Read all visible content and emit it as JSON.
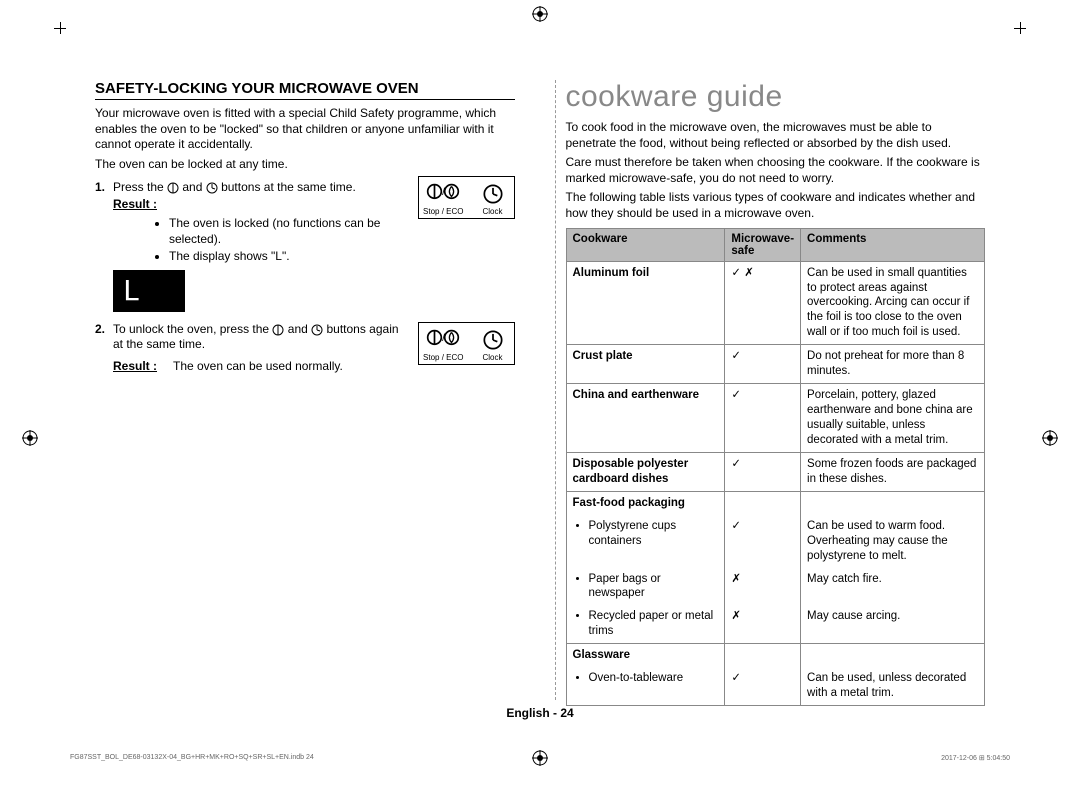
{
  "left": {
    "heading": "SAFETY-LOCKING YOUR MICROWAVE OVEN",
    "intro": "Your microwave oven is fitted with a special Child Safety programme, which enables the oven to be \"locked\" so that children or anyone unfamiliar with it cannot operate it accidentally.",
    "intro2": "The oven can be locked at any time.",
    "step1_num": "1.",
    "step1_text_a": "Press the ",
    "step1_text_b": " and ",
    "step1_text_c": " buttons at the same time.",
    "result_label": "Result :",
    "step1_result_b1": "The oven is locked (no functions can be selected).",
    "step1_result_b2": "The display shows \"L\".",
    "display_L": "L",
    "step2_num": "2.",
    "step2_text_a": "To unlock the oven, press the ",
    "step2_text_b": " and ",
    "step2_text_c": " buttons again at the same time.",
    "step2_result": "The oven can be used normally.",
    "btn1_label": "Stop / ECO",
    "btn2_label": "Clock"
  },
  "right": {
    "chapter": "cookware guide",
    "p1": "To cook food in the microwave oven, the microwaves must be able to penetrate the food, without being reflected or absorbed by the dish used.",
    "p2": "Care must therefore be taken when choosing the cookware. If the cookware is marked microwave-safe, you do not need to worry.",
    "p3": "The following table lists various types of cookware and indicates whether and how they should be used in a microwave oven.",
    "th1": "Cookware",
    "th2": "Microwave-safe",
    "th3": "Comments",
    "rows": [
      {
        "c": "Aluminum foil",
        "b": true,
        "s": "✓ ✗",
        "m": "Can be used in small quantities to protect areas against overcooking. Arcing can occur if the foil is too close to the oven wall or if too much foil is used.",
        "g": true
      },
      {
        "c": "Crust plate",
        "b": true,
        "s": "✓",
        "m": "Do not preheat for more than 8 minutes.",
        "g": true
      },
      {
        "c": "China and earthenware",
        "b": true,
        "s": "✓",
        "m": "Porcelain, pottery, glazed earthenware and bone china are usually suitable, unless decorated with a metal trim.",
        "g": true
      },
      {
        "c": "Disposable polyester cardboard dishes",
        "b": true,
        "s": "✓",
        "m": "Some frozen foods are packaged in these dishes.",
        "g": true
      },
      {
        "c": "Fast-food packaging",
        "b": true,
        "s": "",
        "m": "",
        "g": false
      },
      {
        "c": "Polystyrene cups containers",
        "b": false,
        "li": true,
        "s": "✓",
        "m": "Can be used to warm food. Overheating may cause the polystyrene to melt.",
        "g": false
      },
      {
        "c": "Paper bags or newspaper",
        "b": false,
        "li": true,
        "s": "✗",
        "m": "May catch fire.",
        "g": false
      },
      {
        "c": "Recycled paper or metal trims",
        "b": false,
        "li": true,
        "s": "✗",
        "m": "May cause arcing.",
        "g": true
      },
      {
        "c": "Glassware",
        "b": true,
        "s": "",
        "m": "",
        "g": false
      },
      {
        "c": "Oven-to-tableware",
        "b": false,
        "li": true,
        "s": "✓",
        "m": "Can be used, unless decorated with a metal trim.",
        "g": true
      }
    ]
  },
  "footer": "English - 24",
  "imprint_left": "FG87SST_BOL_DE68-03132X-04_BG+HR+MK+RO+SQ+SR+SL+EN.indb   24",
  "imprint_right": "2017-12-06   ⊞ 5:04:50",
  "colors": {
    "grey_header": "#bbbbbb",
    "border": "#888888",
    "chapter": "#888888"
  }
}
